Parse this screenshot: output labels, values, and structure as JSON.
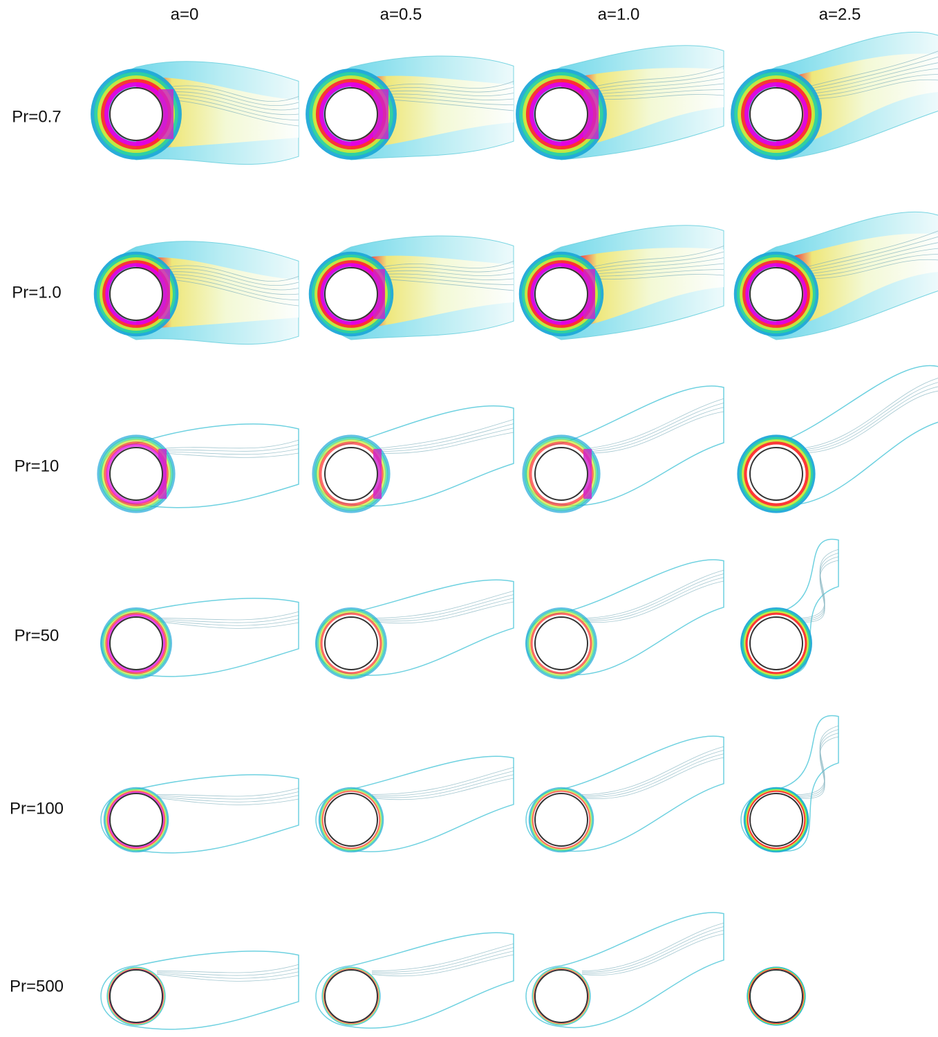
{
  "columns": [
    "a=0",
    "a=0.5",
    "a=1.0",
    "a=2.5"
  ],
  "rows": [
    "Pr=0.7",
    "Pr=1.0",
    "Pr=10",
    "Pr=50",
    "Pr=100",
    "Pr=500"
  ]
}
